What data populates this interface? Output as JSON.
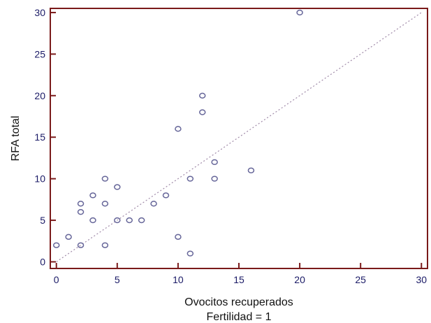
{
  "chart_data": {
    "type": "scatter",
    "title": "",
    "xlabel": "Ovocitos recuperados",
    "xlabel2": "Fertilidad = 1",
    "ylabel": "RFA total",
    "xlim": [
      -0.5,
      30.5
    ],
    "ylim": [
      -0.8,
      30.5
    ],
    "xticks": [
      0,
      5,
      10,
      15,
      20,
      25,
      30
    ],
    "yticks": [
      0,
      5,
      10,
      15,
      20,
      25,
      30
    ],
    "grid": false,
    "x": [
      0,
      1,
      2,
      2,
      2,
      3,
      3,
      4,
      4,
      4,
      5,
      5,
      6,
      7,
      8,
      9,
      10,
      10,
      11,
      11,
      12,
      12,
      13,
      13,
      16,
      20
    ],
    "y": [
      2,
      3,
      2,
      6,
      7,
      5,
      8,
      2,
      7,
      10,
      5,
      9,
      5,
      5,
      7,
      8,
      3,
      16,
      1,
      10,
      18,
      20,
      10,
      12,
      11,
      30
    ],
    "trendline": {
      "style": "dotted",
      "from": [
        0,
        0
      ],
      "to": [
        30,
        30
      ]
    },
    "colors": {
      "frame": "#7a1a1a",
      "tick_label": "#1a1a66",
      "marker": "#666699",
      "trendline": "#a08aa8",
      "axis_title": "#111111"
    }
  }
}
